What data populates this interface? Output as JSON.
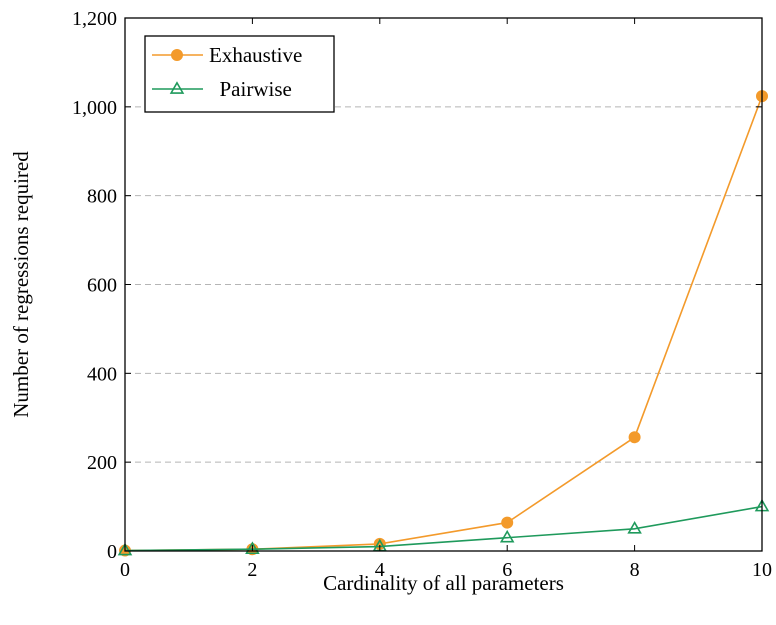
{
  "chart_data": {
    "type": "line",
    "title": "",
    "xlabel": "Cardinality of all parameters",
    "ylabel": "Number of regressions required",
    "x": [
      0,
      2,
      4,
      6,
      8,
      10
    ],
    "xlim": [
      0,
      10
    ],
    "ylim": [
      0,
      1200
    ],
    "xticks": [
      "0",
      "2",
      "4",
      "6",
      "8",
      "10"
    ],
    "yticks": [
      "0",
      "200",
      "400",
      "600",
      "800",
      "1,000",
      "1,200"
    ],
    "ytick_values": [
      0,
      200,
      400,
      600,
      800,
      1000,
      1200
    ],
    "grid": "horizontal dashed",
    "legend_position": "top-left",
    "series": [
      {
        "name": "Exhaustive",
        "values": [
          1,
          4,
          16,
          64,
          256,
          1024
        ],
        "color": "#f39a2b",
        "marker": "circle"
      },
      {
        "name": "Pairwise",
        "values": [
          1,
          4,
          10,
          30,
          50,
          100
        ],
        "color": "#1f9a5c",
        "marker": "triangle"
      }
    ]
  }
}
